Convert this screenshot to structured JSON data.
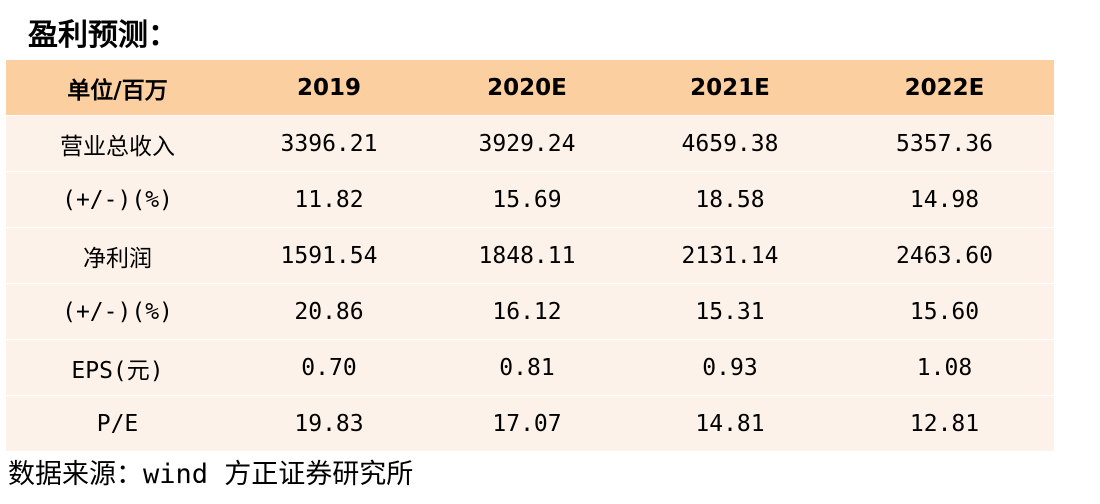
{
  "title": "盈利预测：",
  "table": {
    "headers": [
      "单位/百万",
      "2019",
      "2020E",
      "2021E",
      "2022E"
    ],
    "rows": [
      [
        "营业总收入",
        "3396.21",
        "3929.24",
        "4659.38",
        "5357.36"
      ],
      [
        "(+/-)(%)",
        "11.82",
        "15.69",
        "18.58",
        "14.98"
      ],
      [
        "净利润",
        "1591.54",
        "1848.11",
        "2131.14",
        "2463.60"
      ],
      [
        "(+/-)(%)",
        "20.86",
        "16.12",
        "15.31",
        "15.60"
      ],
      [
        "EPS(元)",
        "0.70",
        "0.81",
        "0.93",
        "1.08"
      ],
      [
        "P/E",
        "19.83",
        "17.07",
        "14.81",
        "12.81"
      ]
    ]
  },
  "source": "数据来源：wind 方正证券研究所",
  "colors": {
    "header_bg": "#fbcf9f",
    "row_bg": "#fdf2e9"
  }
}
